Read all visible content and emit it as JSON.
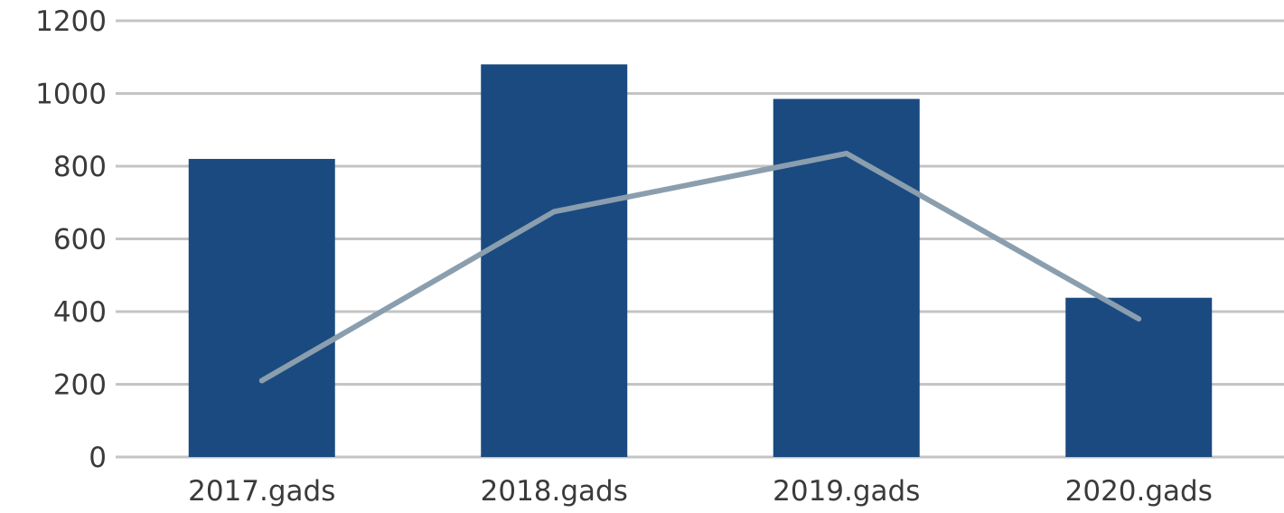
{
  "chart_data": {
    "type": "bar",
    "title": "",
    "xlabel": "",
    "ylabel": "",
    "categories": [
      "2017.gads",
      "2018.gads",
      "2019.gads",
      "2020.gads"
    ],
    "series": [
      {
        "type": "bar",
        "values": [
          820,
          1080,
          985,
          438
        ],
        "color": "#1a4a80"
      },
      {
        "type": "line",
        "values": [
          210,
          675,
          835,
          380
        ],
        "color": "#8a9eae"
      }
    ],
    "ylim": [
      0,
      1200
    ],
    "yticks": [
      0,
      200,
      400,
      600,
      800,
      1000,
      1200
    ],
    "ytick_labels": [
      "0",
      "200",
      "400",
      "600",
      "800",
      "1000",
      "1200"
    ],
    "grid": true,
    "gridline_color": "#c4c4c4",
    "legend": "none"
  }
}
